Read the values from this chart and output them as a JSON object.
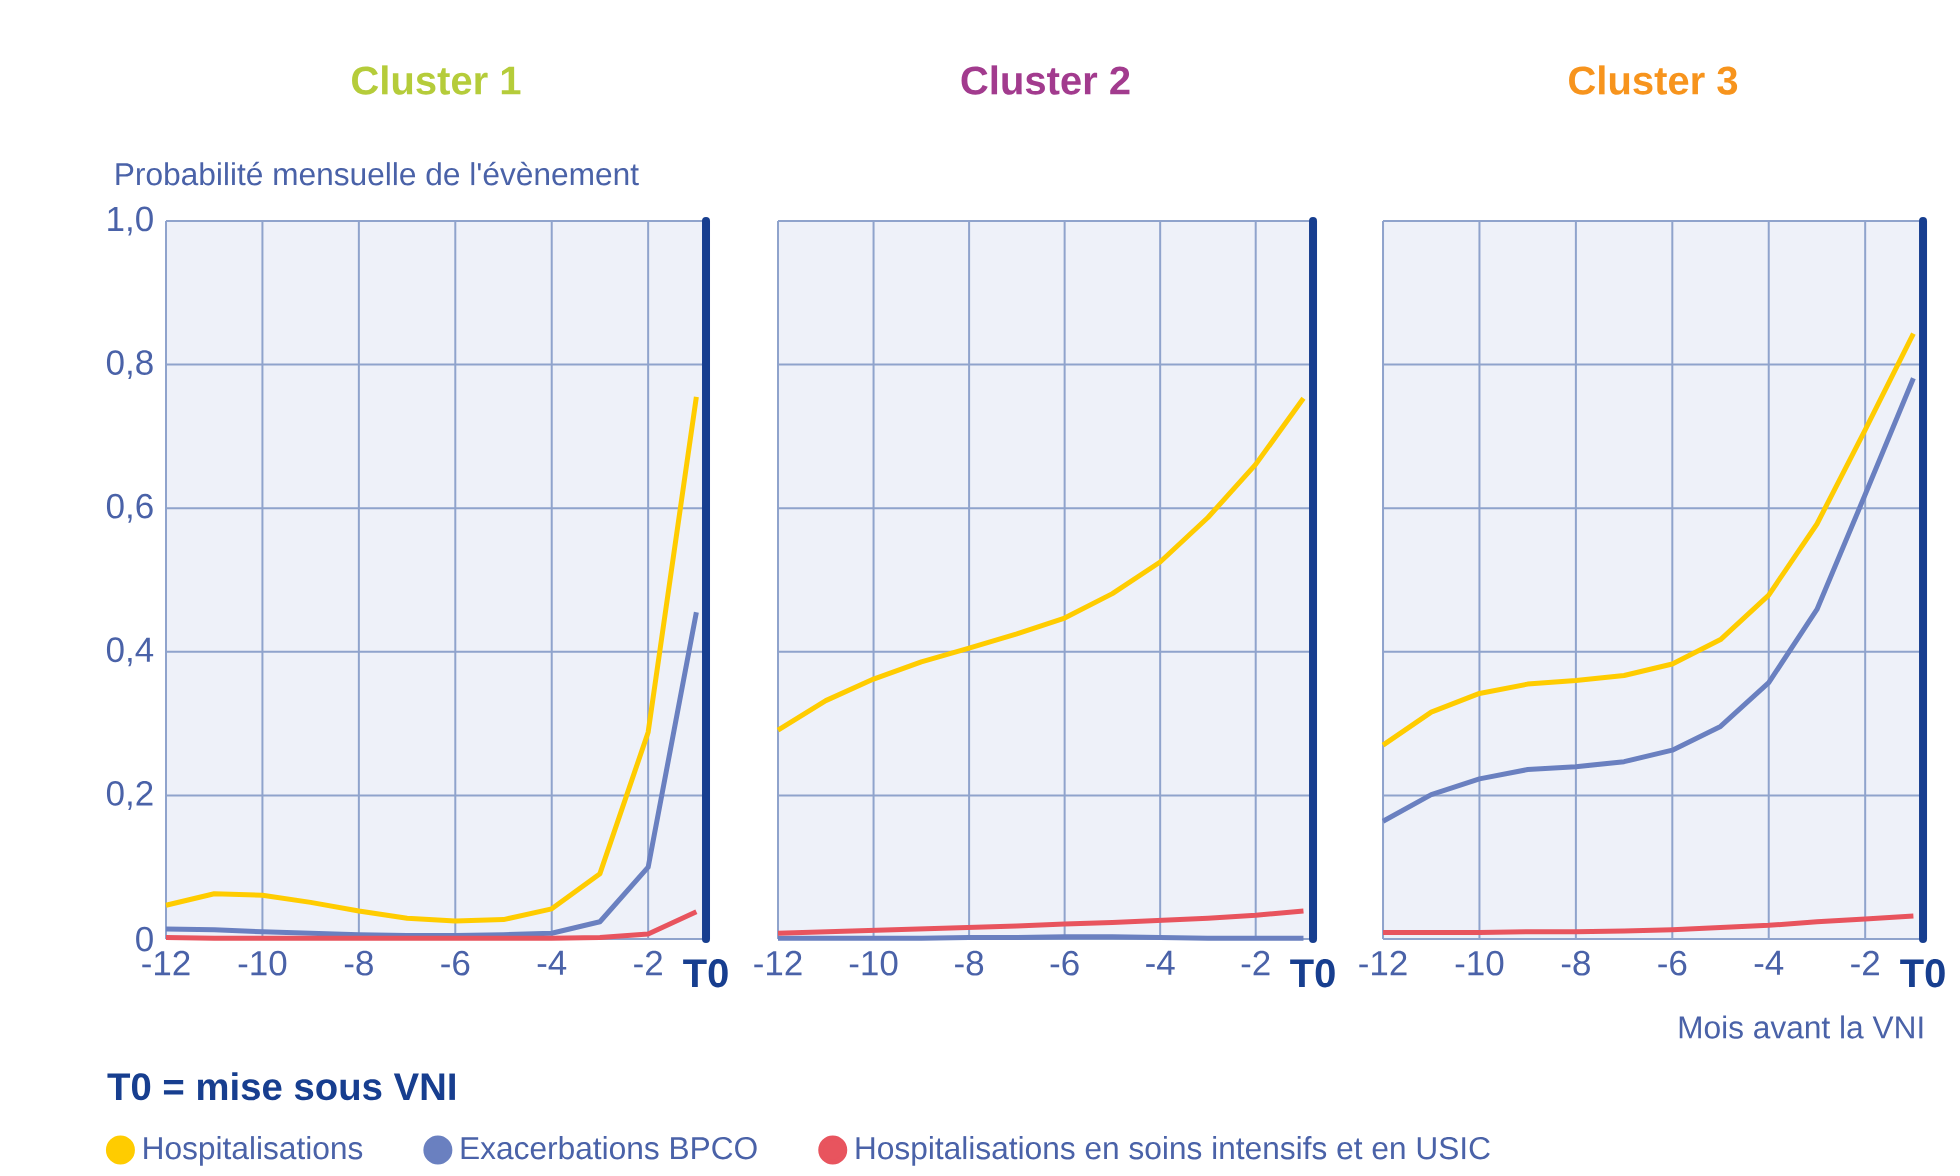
{
  "chart_data": [
    {
      "type": "line",
      "title": "Cluster 1",
      "ylabel": "Probabilité mensuelle de l'évènement",
      "x": [
        -12,
        -11,
        -10,
        -9,
        -8,
        -7,
        -6,
        -5,
        -4,
        -3,
        -2,
        -1
      ],
      "series": [
        {
          "name": "Hospitalisations",
          "color": "#ffcc00",
          "values": [
            0.047,
            0.063,
            0.061,
            0.051,
            0.039,
            0.029,
            0.025,
            0.027,
            0.042,
            0.091,
            0.288,
            0.755
          ]
        },
        {
          "name": "Exacerbations BPCO",
          "color": "#6a80c0",
          "values": [
            0.014,
            0.013,
            0.01,
            0.008,
            0.006,
            0.005,
            0.005,
            0.006,
            0.008,
            0.024,
            0.1,
            0.455
          ]
        },
        {
          "name": "Hospitalisations en soins intensifs et en USIC",
          "color": "#e8545e",
          "values": [
            0.002,
            0.001,
            0.001,
            0.001,
            0.001,
            0.001,
            0.001,
            0.001,
            0.001,
            0.002,
            0.007,
            0.038
          ]
        }
      ],
      "xlim": [
        -12,
        -0.8
      ],
      "ylim": [
        0,
        1
      ],
      "xticks": [
        -12,
        -10,
        -8,
        -6,
        -4,
        -2
      ],
      "yticks": [
        0,
        {
          "value": 0.2,
          "label": "0,2"
        },
        {
          "value": 0.4,
          "label": "0,4"
        },
        {
          "value": 0.6,
          "label": "0,6"
        },
        {
          "value": 0.8,
          "label": "0,8"
        },
        {
          "value": 1,
          "label": "1,0"
        }
      ],
      "ref_lines": [
        {
          "axis": "x",
          "value": -0.8,
          "label": "T0",
          "color": "#173e8f"
        }
      ],
      "grid": true,
      "legend": "bottom",
      "annotations": [
        "T0 = mise sous VNI"
      ]
    },
    {
      "type": "line",
      "title": "Cluster 2",
      "x": [
        -12,
        -11,
        -10,
        -9,
        -8,
        -7,
        -6,
        -5,
        -4,
        -3,
        -2,
        -1
      ],
      "series": [
        {
          "color": "#ffcc00",
          "values": [
            0.291,
            0.332,
            0.362,
            0.386,
            0.405,
            0.425,
            0.447,
            0.481,
            0.525,
            0.587,
            0.661,
            0.753
          ]
        },
        {
          "color": "#6a80c0",
          "values": [
            0.001,
            0.001,
            0.001,
            0.001,
            0.002,
            0.002,
            0.003,
            0.003,
            0.002,
            0.001,
            0.001,
            0.001
          ]
        },
        {
          "color": "#e8545e",
          "values": [
            0.008,
            0.01,
            0.012,
            0.014,
            0.016,
            0.018,
            0.021,
            0.023,
            0.026,
            0.029,
            0.033,
            0.039
          ]
        }
      ],
      "xlim": [
        -12,
        -0.8
      ],
      "ylim": [
        0,
        1
      ],
      "xticks": [
        -12,
        -10,
        -8,
        -6,
        -4,
        -2
      ],
      "yticks": [
        {
          "value": 0,
          "label": null
        },
        {
          "value": 0.2,
          "label": null
        },
        {
          "value": 0.4,
          "label": null
        },
        {
          "value": 0.6,
          "label": null
        },
        {
          "value": 0.8,
          "label": null
        },
        {
          "value": 1,
          "label": null
        }
      ],
      "ref_lines": [
        {
          "axis": "x",
          "value": -0.8,
          "label": "T0",
          "color": "#173e8f"
        }
      ],
      "grid": true,
      "tick_labels": "x"
    },
    {
      "type": "line",
      "title": "Cluster 3",
      "xlabel": "Mois avant la VNI",
      "x": [
        -12,
        -11,
        -10,
        -9,
        -8,
        -7,
        -6,
        -5,
        -4,
        -3,
        -2,
        -1
      ],
      "series": [
        {
          "color": "#ffcc00",
          "values": [
            0.27,
            0.316,
            0.342,
            0.355,
            0.36,
            0.367,
            0.383,
            0.417,
            0.479,
            0.578,
            0.709,
            0.843
          ]
        },
        {
          "color": "#6a80c0",
          "values": [
            0.164,
            0.201,
            0.223,
            0.236,
            0.24,
            0.247,
            0.263,
            0.296,
            0.357,
            0.459,
            0.619,
            0.781
          ]
        },
        {
          "color": "#e8545e",
          "values": [
            0.009,
            0.009,
            0.009,
            0.01,
            0.01,
            0.011,
            0.013,
            0.016,
            0.019,
            0.024,
            0.028,
            0.032
          ]
        }
      ],
      "xlim": [
        -12,
        -0.8
      ],
      "ylim": [
        0,
        1
      ],
      "xticks": [
        -12,
        -10,
        -8,
        -6,
        -4,
        -2
      ],
      "yticks": [
        {
          "value": 0,
          "label": null
        },
        {
          "value": 0.2,
          "label": null
        },
        {
          "value": 0.4,
          "label": null
        },
        {
          "value": 0.6,
          "label": null
        },
        {
          "value": 0.8,
          "label": null
        },
        {
          "value": 1,
          "label": null
        }
      ],
      "ref_lines": [
        {
          "axis": "x",
          "value": -0.8,
          "label": "T0",
          "color": "#173e8f"
        }
      ],
      "grid": true,
      "tick_labels": "x"
    }
  ]
}
